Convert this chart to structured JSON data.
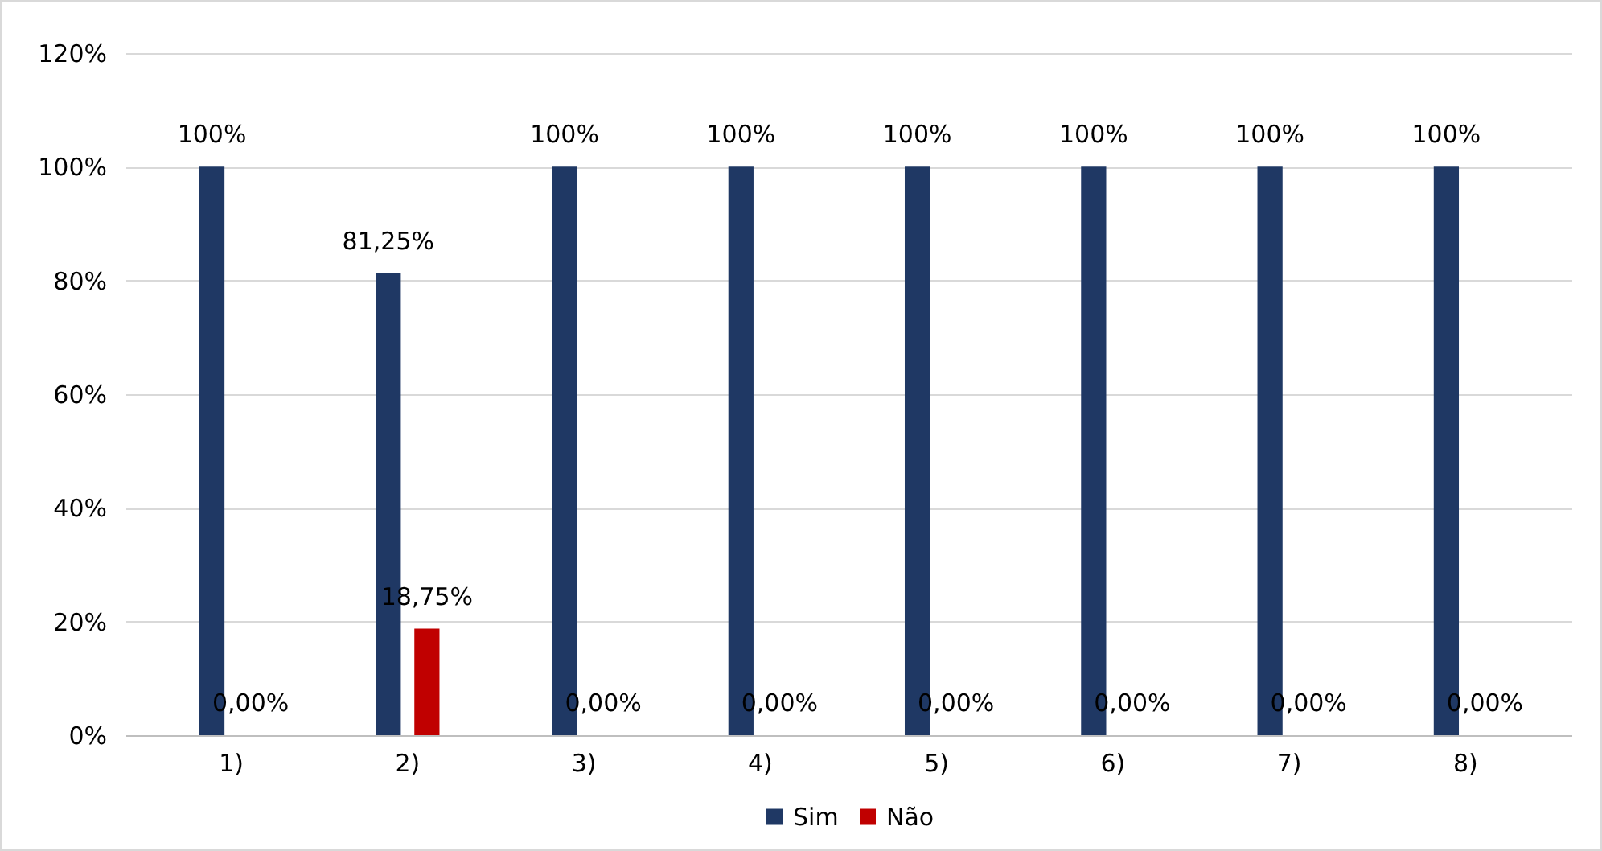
{
  "chart_data": {
    "type": "bar",
    "categories": [
      "1)",
      "2)",
      "3)",
      "4)",
      "5)",
      "6)",
      "7)",
      "8)"
    ],
    "series": [
      {
        "name": "Sim",
        "color": "#1f3864",
        "values": [
          100,
          81.25,
          100,
          100,
          100,
          100,
          100,
          100
        ],
        "value_labels": [
          "100%",
          "81,25%",
          "100%",
          "100%",
          "100%",
          "100%",
          "100%",
          "100%"
        ]
      },
      {
        "name": "Não",
        "color": "#c00000",
        "values": [
          0,
          18.75,
          0,
          0,
          0,
          0,
          0,
          0
        ],
        "value_labels": [
          "0,00%",
          "18,75%",
          "0,00%",
          "0,00%",
          "0,00%",
          "0,00%",
          "0,00%",
          "0,00%"
        ]
      }
    ],
    "ylim": [
      0,
      120
    ],
    "yticks": [
      {
        "value": 0,
        "label": "0%"
      },
      {
        "value": 20,
        "label": "20%"
      },
      {
        "value": 40,
        "label": "40%"
      },
      {
        "value": 60,
        "label": "60%"
      },
      {
        "value": 80,
        "label": "80%"
      },
      {
        "value": 100,
        "label": "100%"
      },
      {
        "value": 120,
        "label": "120%"
      }
    ],
    "grid": "y",
    "legend": "bottom"
  }
}
